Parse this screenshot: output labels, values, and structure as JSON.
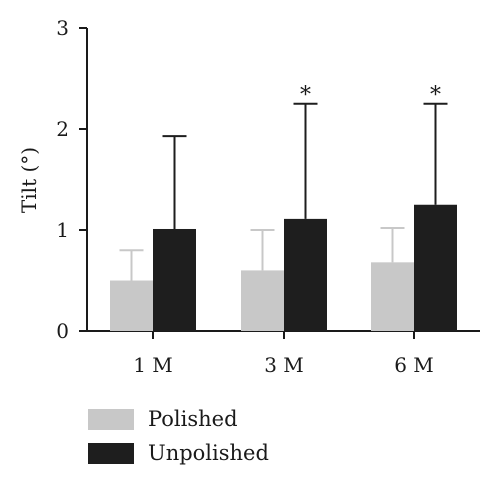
{
  "chart_data": {
    "type": "bar",
    "ylabel": "Tilt (°)",
    "ylim": [
      0,
      3
    ],
    "yticks": [
      "0",
      "1",
      "2",
      "3"
    ],
    "categories": [
      "1 M",
      "3 M",
      "6 M"
    ],
    "series": [
      {
        "name": "Polished",
        "color": "#c8c8c8",
        "values": [
          0.5,
          0.6,
          0.68
        ],
        "error_upper": [
          0.8,
          1.0,
          1.02
        ]
      },
      {
        "name": "Unpolished",
        "color": "#1e1e1e",
        "values": [
          1.01,
          1.11,
          1.25
        ],
        "error_upper": [
          1.93,
          2.25,
          2.25
        ]
      }
    ],
    "annotations": [
      {
        "category": "3 M",
        "series": "Unpolished",
        "text": "*"
      },
      {
        "category": "6 M",
        "series": "Unpolished",
        "text": "*"
      }
    ],
    "grid": false,
    "legend_position": "bottom-left"
  }
}
